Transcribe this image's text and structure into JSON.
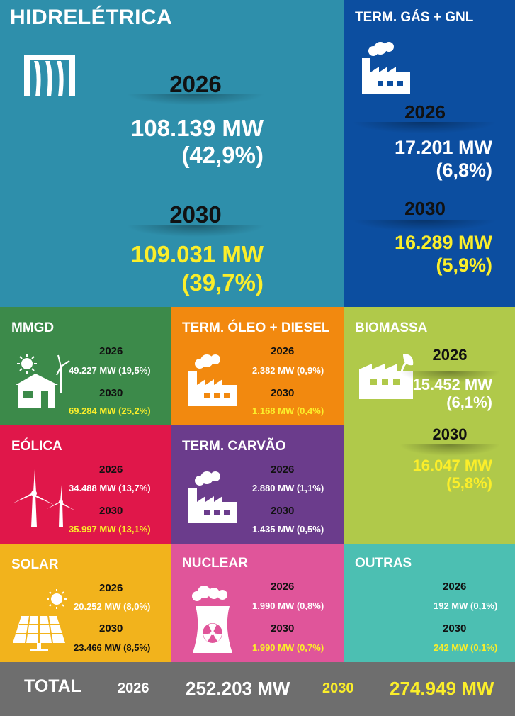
{
  "colors": {
    "hidro": "#2e8fab",
    "gas": "#0c4ea0",
    "mmgd": "#3c8a4a",
    "oleo": "#f2890f",
    "biomassa": "#b0c94a",
    "eolica": "#e0174a",
    "carvao": "#6b3c8c",
    "solar": "#f2b31c",
    "nuclear": "#e0559a",
    "outras": "#4cbfb2",
    "total": "#6e6e6e",
    "yellow_value": "#fbee2a"
  },
  "hidro": {
    "title": "HIDRELÉTRICA",
    "icon": "dam-icon",
    "y1": "2026",
    "v1": "108.139 MW",
    "p1": "(42,9%)",
    "y2": "2030",
    "v2": "109.031 MW",
    "p2": "(39,7%)"
  },
  "gas": {
    "title": "TERM. GÁS + GNL",
    "icon": "factory-icon",
    "y1": "2026",
    "v1": "17.201 MW",
    "p1": "(6,8%)",
    "y2": "2030",
    "v2": "16.289 MW",
    "p2": "(5,9%)"
  },
  "mmgd": {
    "title": "MMGD",
    "icon": "solar-house-icon",
    "y1": "2026",
    "v1": "49.227 MW (19,5%)",
    "y2": "2030",
    "v2": "69.284 MW (25,2%)"
  },
  "oleo": {
    "title": "TERM. ÓLEO + DIESEL",
    "icon": "factory-icon",
    "y1": "2026",
    "v1": "2.382 MW (0,9%)",
    "y2": "2030",
    "v2": "1.168 MW (0,4%)"
  },
  "biomassa": {
    "title": "BIOMASSA",
    "icon": "biomass-factory-icon",
    "y1": "2026",
    "v1": "15.452 MW",
    "p1": "(6,1%)",
    "y2": "2030",
    "v2": "16.047 MW",
    "p2": "(5,8%)"
  },
  "eolica": {
    "title": "EÓLICA",
    "icon": "wind-turbine-icon",
    "y1": "2026",
    "v1": "34.488 MW (13,7%)",
    "y2": "2030",
    "v2": "35.997 MW (13,1%)"
  },
  "carvao": {
    "title": "TERM. CARVÃO",
    "icon": "factory-icon",
    "y1": "2026",
    "v1": "2.880 MW (1,1%)",
    "y2": "2030",
    "v2": "1.435 MW (0,5%)"
  },
  "solar": {
    "title": "SOLAR",
    "icon": "solar-panel-icon",
    "y1": "2026",
    "v1": "20.252 MW (8,0%)",
    "y2": "2030",
    "v2": "23.466 MW (8,5%)"
  },
  "nuclear": {
    "title": "NUCLEAR",
    "icon": "nuclear-plant-icon",
    "y1": "2026",
    "v1": "1.990 MW (0,8%)",
    "y2": "2030",
    "v2": "1.990 MW (0,7%)"
  },
  "outras": {
    "title": "OUTRAS",
    "y1": "2026",
    "v1": "192 MW (0,1%)",
    "y2": "2030",
    "v2": "242 MW (0,1%)"
  },
  "total": {
    "label": "TOTAL",
    "y1": "2026",
    "v1": "252.203 MW",
    "y2": "2030",
    "v2": "274.949 MW"
  }
}
